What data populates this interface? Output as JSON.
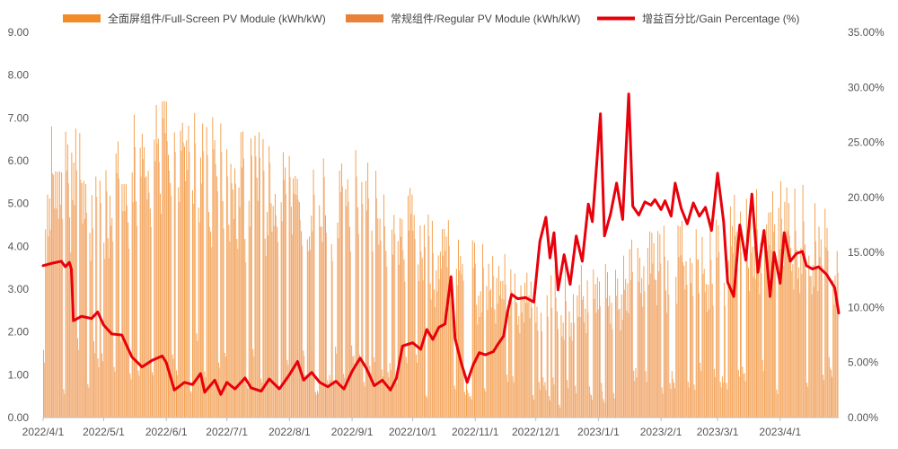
{
  "chart_data": {
    "type": "bar",
    "colors": {
      "full_screen": "#F28C28",
      "regular": "#E8813A",
      "gain": "#E8000B",
      "axis": "#555555"
    },
    "left_axis": {
      "min": 0,
      "max": 9,
      "ticks": [
        "0.00",
        "1.00",
        "2.00",
        "3.00",
        "4.00",
        "5.00",
        "6.00",
        "7.00",
        "8.00",
        "9.00"
      ]
    },
    "right_axis": {
      "min": 0,
      "max": 35,
      "ticks": [
        "0.00%",
        "5.00%",
        "10.00%",
        "15.00%",
        "20.00%",
        "25.00%",
        "30.00%",
        "35.00%"
      ]
    },
    "x_axis": {
      "start": "2022-04-01",
      "end": "2023-04-30",
      "tick_dates": [
        "2022-04-01",
        "2022-05-01",
        "2022-06-01",
        "2022-07-01",
        "2022-08-01",
        "2022-09-01",
        "2022-10-01",
        "2022-11-01",
        "2022-12-01",
        "2023-01-01",
        "2023-02-01",
        "2023-03-01",
        "2023-04-01"
      ],
      "tick_labels": [
        "2022/4/1",
        "2022/5/1",
        "2022/6/1",
        "2022/7/1",
        "2022/8/1",
        "2022/9/1",
        "2022/10/1",
        "2022/11/1",
        "2022/12/1",
        "2023/1/1",
        "2023/2/1",
        "2023/3/1",
        "2023/4/1"
      ]
    },
    "legend": {
      "position": "top",
      "items": [
        {
          "name": "全面屏组件/Full-Screen PV Module (kWh/kW)",
          "kind": "bar",
          "color": "#F28C28"
        },
        {
          "name": "常规组件/Regular PV Module (kWh/kW)",
          "kind": "bar",
          "color": "#E8813A"
        },
        {
          "name": "增益百分比/Gain Percentage (%)",
          "kind": "line",
          "color": "#E8000B"
        }
      ]
    },
    "series": [
      {
        "name": "全面屏组件/Full-Screen PV Module (kWh/kW)",
        "axis": "left",
        "type": "bar",
        "monthly_profile": [
          [
            "2022-04-01",
            5.6
          ],
          [
            "2022-05-01",
            5.4
          ],
          [
            "2022-06-01",
            6.2
          ],
          [
            "2022-07-01",
            5.5
          ],
          [
            "2022-08-01",
            5.4
          ],
          [
            "2022-09-01",
            5.2
          ],
          [
            "2022-10-01",
            4.3
          ],
          [
            "2022-11-01",
            3.3
          ],
          [
            "2022-12-01",
            2.9
          ],
          [
            "2023-01-01",
            3.0
          ],
          [
            "2023-02-01",
            3.6
          ],
          [
            "2023-03-01",
            4.1
          ],
          [
            "2023-04-01",
            4.5
          ],
          [
            "2023-04-30",
            4.2
          ]
        ]
      },
      {
        "name": "常规组件/Regular PV Module (kWh/kW)",
        "axis": "left",
        "type": "bar",
        "monthly_profile": [
          [
            "2022-04-01",
            4.9
          ],
          [
            "2022-05-01",
            5.1
          ],
          [
            "2022-06-01",
            6.0
          ],
          [
            "2022-07-01",
            5.3
          ],
          [
            "2022-08-01",
            5.2
          ],
          [
            "2022-09-01",
            4.9
          ],
          [
            "2022-10-01",
            4.0
          ],
          [
            "2022-11-01",
            3.0
          ],
          [
            "2022-12-01",
            2.5
          ],
          [
            "2023-01-01",
            2.5
          ],
          [
            "2023-02-01",
            3.1
          ],
          [
            "2023-03-01",
            3.6
          ],
          [
            "2023-04-01",
            4.0
          ],
          [
            "2023-04-30",
            3.8
          ]
        ]
      },
      {
        "name": "增益百分比/Gain Percentage (%)",
        "axis": "right",
        "type": "line",
        "points": [
          [
            "2022-04-01",
            13.8
          ],
          [
            "2022-04-05",
            14.0
          ],
          [
            "2022-04-10",
            14.2
          ],
          [
            "2022-04-12",
            13.7
          ],
          [
            "2022-04-14",
            14.1
          ],
          [
            "2022-04-15",
            13.5
          ],
          [
            "2022-04-16",
            8.8
          ],
          [
            "2022-04-20",
            9.2
          ],
          [
            "2022-04-25",
            9.0
          ],
          [
            "2022-04-28",
            9.6
          ],
          [
            "2022-05-01",
            8.4
          ],
          [
            "2022-05-05",
            7.6
          ],
          [
            "2022-05-10",
            7.5
          ],
          [
            "2022-05-15",
            5.5
          ],
          [
            "2022-05-20",
            4.6
          ],
          [
            "2022-05-25",
            5.2
          ],
          [
            "2022-05-30",
            5.6
          ],
          [
            "2022-06-01",
            5.0
          ],
          [
            "2022-06-05",
            2.5
          ],
          [
            "2022-06-10",
            3.2
          ],
          [
            "2022-06-14",
            3.0
          ],
          [
            "2022-06-18",
            4.0
          ],
          [
            "2022-06-20",
            2.3
          ],
          [
            "2022-06-25",
            3.4
          ],
          [
            "2022-06-28",
            2.1
          ],
          [
            "2022-07-01",
            3.2
          ],
          [
            "2022-07-05",
            2.6
          ],
          [
            "2022-07-10",
            3.6
          ],
          [
            "2022-07-13",
            2.7
          ],
          [
            "2022-07-18",
            2.4
          ],
          [
            "2022-07-22",
            3.5
          ],
          [
            "2022-07-27",
            2.6
          ],
          [
            "2022-08-01",
            3.9
          ],
          [
            "2022-08-05",
            5.1
          ],
          [
            "2022-08-08",
            3.4
          ],
          [
            "2022-08-12",
            4.1
          ],
          [
            "2022-08-16",
            3.2
          ],
          [
            "2022-08-20",
            2.8
          ],
          [
            "2022-08-24",
            3.3
          ],
          [
            "2022-08-28",
            2.6
          ],
          [
            "2022-09-01",
            4.2
          ],
          [
            "2022-09-05",
            5.4
          ],
          [
            "2022-09-08",
            4.5
          ],
          [
            "2022-09-12",
            2.9
          ],
          [
            "2022-09-16",
            3.4
          ],
          [
            "2022-09-20",
            2.5
          ],
          [
            "2022-09-23",
            3.6
          ],
          [
            "2022-09-26",
            6.5
          ],
          [
            "2022-10-01",
            6.8
          ],
          [
            "2022-10-05",
            6.2
          ],
          [
            "2022-10-08",
            8.0
          ],
          [
            "2022-10-11",
            7.1
          ],
          [
            "2022-10-14",
            8.2
          ],
          [
            "2022-10-17",
            8.5
          ],
          [
            "2022-10-20",
            12.8
          ],
          [
            "2022-10-22",
            7.2
          ],
          [
            "2022-10-25",
            5.0
          ],
          [
            "2022-10-28",
            3.2
          ],
          [
            "2022-10-31",
            4.8
          ],
          [
            "2022-11-03",
            5.9
          ],
          [
            "2022-11-06",
            5.7
          ],
          [
            "2022-11-10",
            6.0
          ],
          [
            "2022-11-12",
            6.6
          ],
          [
            "2022-11-15",
            7.4
          ],
          [
            "2022-11-17",
            9.6
          ],
          [
            "2022-11-19",
            11.2
          ],
          [
            "2022-11-22",
            10.8
          ],
          [
            "2022-11-26",
            10.9
          ],
          [
            "2022-11-30",
            10.5
          ],
          [
            "2022-12-03",
            16.0
          ],
          [
            "2022-12-06",
            18.2
          ],
          [
            "2022-12-08",
            14.5
          ],
          [
            "2022-12-10",
            16.8
          ],
          [
            "2022-12-12",
            11.6
          ],
          [
            "2022-12-15",
            14.8
          ],
          [
            "2022-12-18",
            12.1
          ],
          [
            "2022-12-21",
            16.5
          ],
          [
            "2022-12-24",
            14.2
          ],
          [
            "2022-12-27",
            19.4
          ],
          [
            "2022-12-29",
            17.8
          ],
          [
            "2023-01-02",
            27.6
          ],
          [
            "2023-01-04",
            16.5
          ],
          [
            "2023-01-07",
            18.5
          ],
          [
            "2023-01-10",
            21.3
          ],
          [
            "2023-01-13",
            18.0
          ],
          [
            "2023-01-16",
            29.4
          ],
          [
            "2023-01-18",
            19.2
          ],
          [
            "2023-01-21",
            18.4
          ],
          [
            "2023-01-24",
            19.6
          ],
          [
            "2023-01-27",
            19.3
          ],
          [
            "2023-01-29",
            19.8
          ],
          [
            "2023-02-01",
            18.9
          ],
          [
            "2023-02-03",
            19.7
          ],
          [
            "2023-02-06",
            18.3
          ],
          [
            "2023-02-08",
            21.3
          ],
          [
            "2023-02-11",
            19.0
          ],
          [
            "2023-02-14",
            17.6
          ],
          [
            "2023-02-17",
            19.5
          ],
          [
            "2023-02-20",
            18.3
          ],
          [
            "2023-02-23",
            19.1
          ],
          [
            "2023-02-26",
            17.0
          ],
          [
            "2023-03-01",
            22.2
          ],
          [
            "2023-03-04",
            17.8
          ],
          [
            "2023-03-06",
            12.3
          ],
          [
            "2023-03-09",
            11.0
          ],
          [
            "2023-03-12",
            17.5
          ],
          [
            "2023-03-15",
            14.3
          ],
          [
            "2023-03-18",
            20.3
          ],
          [
            "2023-03-21",
            13.2
          ],
          [
            "2023-03-24",
            17.0
          ],
          [
            "2023-03-27",
            11.0
          ],
          [
            "2023-03-29",
            15.0
          ],
          [
            "2023-04-01",
            12.2
          ],
          [
            "2023-04-03",
            16.8
          ],
          [
            "2023-04-06",
            14.2
          ],
          [
            "2023-04-09",
            14.9
          ],
          [
            "2023-04-12",
            15.1
          ],
          [
            "2023-04-14",
            13.8
          ],
          [
            "2023-04-17",
            13.5
          ],
          [
            "2023-04-20",
            13.7
          ],
          [
            "2023-04-24",
            13.0
          ],
          [
            "2023-04-28",
            11.8
          ],
          [
            "2023-04-30",
            9.5
          ]
        ]
      }
    ]
  }
}
